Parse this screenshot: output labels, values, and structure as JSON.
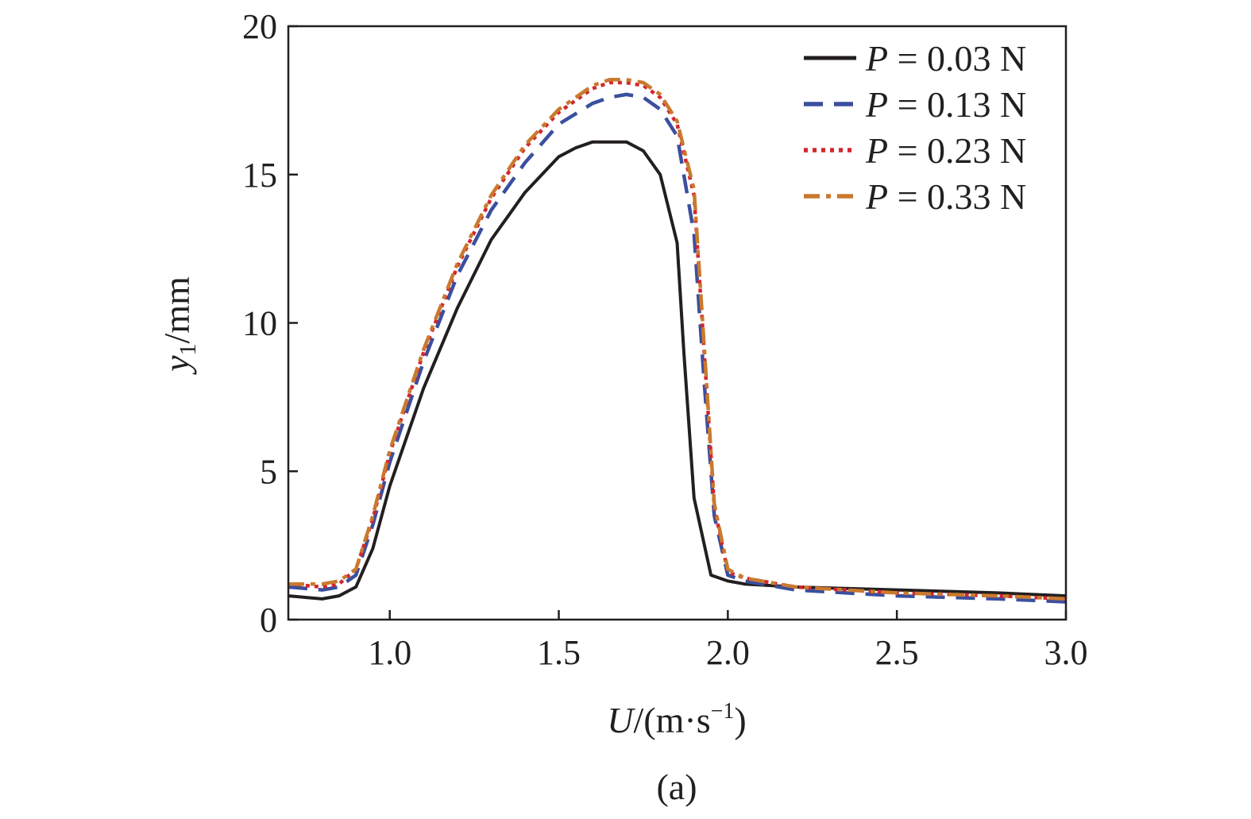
{
  "chart_data": {
    "type": "line",
    "panel_label": "(a)",
    "xlabel": {
      "var": "U",
      "rest": "/(m·s",
      "sup": "−1",
      "close": ")"
    },
    "ylabel": {
      "var": "y",
      "sub": "1",
      "rest": "/mm"
    },
    "xlim": [
      0.7,
      3.0
    ],
    "ylim": [
      0,
      20
    ],
    "xticks": [
      1.0,
      1.5,
      2.0,
      2.5,
      3.0
    ],
    "xtick_labels": [
      "1.0",
      "1.5",
      "2.0",
      "2.5",
      "3.0"
    ],
    "yticks": [
      0,
      5,
      10,
      15,
      20
    ],
    "ytick_labels": [
      "0",
      "5",
      "10",
      "15",
      "20"
    ],
    "grid": false,
    "legend_position": "top-right",
    "series": [
      {
        "name": "P = 0.03 N",
        "var": "P",
        "label_rest": " = 0.03 N",
        "color": "#231f20",
        "style": "solid",
        "x": [
          0.7,
          0.8,
          0.85,
          0.9,
          0.95,
          1.0,
          1.1,
          1.2,
          1.3,
          1.4,
          1.5,
          1.55,
          1.6,
          1.65,
          1.7,
          1.75,
          1.8,
          1.85,
          1.87,
          1.9,
          1.95,
          2.0,
          2.05,
          2.2,
          2.5,
          2.8,
          3.0
        ],
        "values": [
          0.8,
          0.7,
          0.8,
          1.1,
          2.4,
          4.5,
          7.8,
          10.5,
          12.8,
          14.4,
          15.6,
          15.9,
          16.1,
          16.1,
          16.1,
          15.8,
          15.0,
          12.7,
          9.0,
          4.1,
          1.5,
          1.3,
          1.2,
          1.1,
          1.0,
          0.9,
          0.8
        ]
      },
      {
        "name": "P = 0.13 N",
        "var": "P",
        "label_rest": " = 0.13 N",
        "color": "#3a4f9e",
        "style": "dashed",
        "x": [
          0.7,
          0.8,
          0.85,
          0.9,
          0.95,
          1.0,
          1.1,
          1.2,
          1.3,
          1.4,
          1.5,
          1.6,
          1.65,
          1.7,
          1.75,
          1.8,
          1.85,
          1.9,
          1.93,
          1.96,
          2.0,
          2.05,
          2.2,
          2.5,
          2.8,
          3.0
        ],
        "values": [
          1.1,
          1.0,
          1.1,
          1.5,
          3.2,
          5.3,
          8.7,
          11.6,
          13.8,
          15.4,
          16.7,
          17.4,
          17.6,
          17.7,
          17.6,
          17.2,
          16.3,
          13.0,
          8.0,
          3.5,
          1.5,
          1.3,
          1.0,
          0.8,
          0.7,
          0.6
        ]
      },
      {
        "name": "P = 0.23 N",
        "var": "P",
        "label_rest": " = 0.23 N",
        "color": "#d3262c",
        "style": "dotted",
        "x": [
          0.7,
          0.8,
          0.85,
          0.9,
          0.95,
          1.0,
          1.1,
          1.2,
          1.3,
          1.4,
          1.5,
          1.6,
          1.65,
          1.7,
          1.75,
          1.8,
          1.85,
          1.9,
          1.93,
          1.96,
          2.0,
          2.05,
          2.2,
          2.5,
          2.8,
          3.0
        ],
        "values": [
          1.2,
          1.1,
          1.2,
          1.7,
          3.4,
          5.6,
          9.0,
          11.9,
          14.2,
          15.9,
          17.1,
          17.9,
          18.1,
          18.1,
          18.0,
          17.6,
          16.7,
          14.3,
          9.0,
          3.8,
          1.6,
          1.4,
          1.1,
          0.9,
          0.8,
          0.7
        ]
      },
      {
        "name": "P = 0.33 N",
        "var": "P",
        "label_rest": " = 0.33 N",
        "color": "#c97a2e",
        "style": "dashdot",
        "x": [
          0.7,
          0.8,
          0.85,
          0.9,
          0.95,
          1.0,
          1.1,
          1.2,
          1.3,
          1.4,
          1.5,
          1.6,
          1.65,
          1.7,
          1.75,
          1.8,
          1.85,
          1.9,
          1.93,
          1.96,
          2.0,
          2.05,
          2.2,
          2.5,
          2.8,
          3.0
        ],
        "values": [
          1.2,
          1.2,
          1.3,
          1.7,
          3.5,
          5.7,
          9.1,
          12.0,
          14.3,
          16.0,
          17.2,
          18.0,
          18.2,
          18.2,
          18.1,
          17.7,
          16.8,
          14.5,
          9.2,
          3.9,
          1.7,
          1.4,
          1.1,
          0.9,
          0.8,
          0.7
        ]
      }
    ]
  }
}
